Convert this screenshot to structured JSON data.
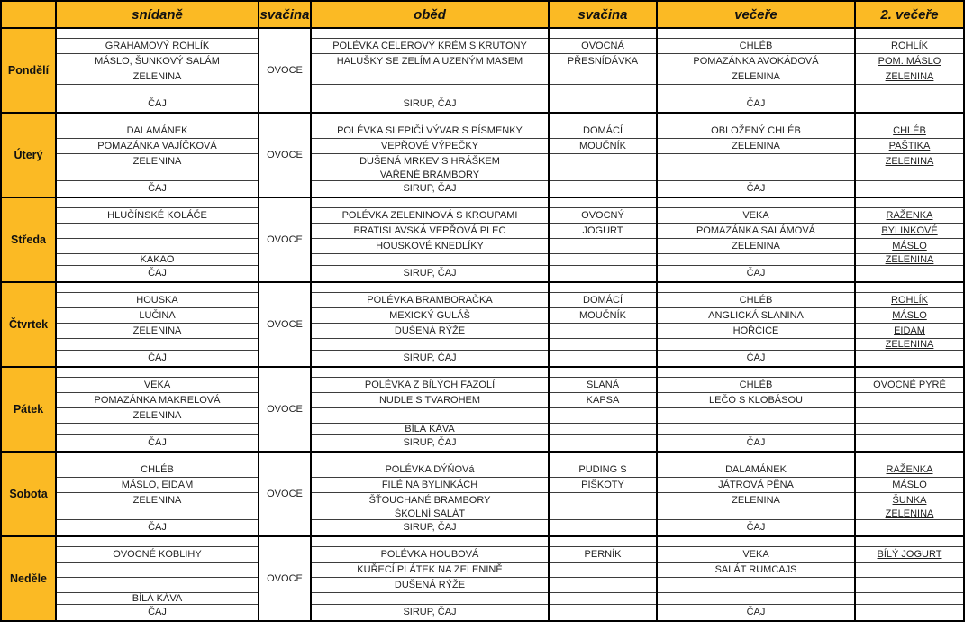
{
  "table": {
    "accent_color": "#FBBA24",
    "columns": [
      "",
      "snídaně",
      "svačina",
      "oběd",
      "svačina",
      "večeře",
      "2. večeře"
    ],
    "days": [
      {
        "name": "Pondělí",
        "breakfast": [
          "",
          "GRAHAMOVÝ ROHLÍK",
          "MÁSLO, ŠUNKOVÝ SALÁM",
          "ZELENINA",
          "",
          "ČAJ"
        ],
        "morning_snack": "OVOCE",
        "lunch": [
          "",
          "POLÉVKA CELEROVÝ KRÉM S KRUTONY",
          "HALUŠKY SE ZELÍM A UZENÝM MASEM",
          "",
          "",
          "SIRUP, ČAJ"
        ],
        "afternoon_snack": [
          "",
          "OVOCNÁ",
          "PŘESNÍDÁVKA",
          "",
          "",
          ""
        ],
        "dinner": [
          "",
          "CHLÉB",
          "POMAZÁNKA AVOKÁDOVÁ",
          "ZELENINA",
          "",
          "ČAJ"
        ],
        "second_dinner": [
          "",
          "ROHLÍK",
          "POM. MÁSLO",
          "ZELENINA",
          "",
          ""
        ]
      },
      {
        "name": "Úterý",
        "breakfast": [
          "",
          "DALAMÁNEK",
          "POMAZÁNKA VAJÍČKOVÁ",
          "ZELENINA",
          "",
          "ČAJ"
        ],
        "morning_snack": "OVOCE",
        "lunch": [
          "",
          "POLÉVKA SLEPIČÍ VÝVAR S PÍSMENKY",
          "VEPŘOVÉ VÝPEČKY",
          "DUŠENÁ MRKEV S HRÁŠKEM",
          "VAŘENÉ BRAMBORY",
          "SIRUP, ČAJ"
        ],
        "afternoon_snack": [
          "",
          "DOMÁCÍ",
          "MOUČNÍK",
          "",
          "",
          ""
        ],
        "dinner": [
          "",
          "OBLOŽENÝ CHLÉB",
          "ZELENINA",
          "",
          "",
          "ČAJ"
        ],
        "second_dinner": [
          "",
          "CHLÉB",
          "PAŠTIKA",
          "ZELENINA",
          "",
          ""
        ]
      },
      {
        "name": "Středa",
        "breakfast": [
          "",
          "HLUČÍNSKÉ KOLÁČE",
          "",
          "",
          "KAKAO",
          "ČAJ"
        ],
        "morning_snack": "OVOCE",
        "lunch": [
          "",
          "POLÉVKA ZELENINOVÁ S KROUPAMI",
          "BRATISLAVSKÁ VEPŘOVÁ PLEC",
          "HOUSKOVÉ KNEDLÍKY",
          "",
          "SIRUP, ČAJ"
        ],
        "afternoon_snack": [
          "",
          "OVOCNÝ",
          "JOGURT",
          "",
          "",
          ""
        ],
        "dinner": [
          "",
          "VEKA",
          "POMAZÁNKA SALÁMOVÁ",
          "ZELENINA",
          "",
          "ČAJ"
        ],
        "second_dinner": [
          "",
          "RAŽENKA",
          "BYLINKOVÉ",
          "MÁSLO",
          "ZELENINA",
          ""
        ]
      },
      {
        "name": "Čtvrtek",
        "breakfast": [
          "",
          "HOUSKA",
          "LUČINA",
          "ZELENINA",
          "",
          "ČAJ"
        ],
        "morning_snack": "OVOCE",
        "lunch": [
          "",
          "POLÉVKA BRAMBORAČKA",
          "MEXICKÝ GULÁŠ",
          "DUŠENÁ RÝŽE",
          "",
          "SIRUP, ČAJ"
        ],
        "afternoon_snack": [
          "",
          "DOMÁCÍ",
          "MOUČNÍK",
          "",
          "",
          ""
        ],
        "dinner": [
          "",
          "CHLÉB",
          "ANGLICKÁ SLANINA",
          "HOŘČICE",
          "",
          "ČAJ"
        ],
        "second_dinner": [
          "",
          "ROHLÍK",
          "MÁSLO",
          "EIDAM",
          "ZELENINA",
          ""
        ]
      },
      {
        "name": "Pátek",
        "breakfast": [
          "",
          "VEKA",
          "POMAZÁNKA MAKRELOVÁ",
          "ZELENINA",
          "",
          "ČAJ"
        ],
        "morning_snack": "OVOCE",
        "lunch": [
          "",
          "POLÉVKA Z BÍLÝCH FAZOLÍ",
          "NUDLE S TVAROHEM",
          "",
          "BÍLÁ KÁVA",
          "SIRUP, ČAJ"
        ],
        "afternoon_snack": [
          "",
          "SLANÁ",
          "KAPSA",
          "",
          "",
          ""
        ],
        "dinner": [
          "",
          "CHLÉB",
          "LEČO S KLOBÁSOU",
          "",
          "",
          "ČAJ"
        ],
        "second_dinner": [
          "",
          "OVOCNÉ PYRÉ",
          "",
          "",
          "",
          ""
        ]
      },
      {
        "name": "Sobota",
        "breakfast": [
          "",
          "CHLÉB",
          "MÁSLO, EIDAM",
          "ZELENINA",
          "",
          "ČAJ"
        ],
        "morning_snack": "OVOCE",
        "lunch": [
          "",
          "POLÉVKA DÝŇOVá",
          "FILÉ NA BYLINKÁCH",
          "ŠŤOUCHANÉ BRAMBORY",
          "ŠKOLNÍ SALÁT",
          "SIRUP, ČAJ"
        ],
        "afternoon_snack": [
          "",
          "PUDING S",
          "PIŠKOTY",
          "",
          "",
          ""
        ],
        "dinner": [
          "",
          "DALAMÁNEK",
          "JÁTROVÁ PĚNA",
          "ZELENINA",
          "",
          "ČAJ"
        ],
        "second_dinner": [
          "",
          "RAŽENKA",
          "MÁSLO",
          "ŠUNKA",
          "ZELENINA",
          ""
        ]
      },
      {
        "name": "Neděle",
        "breakfast": [
          "",
          "OVOCNÉ KOBLIHY",
          "",
          "",
          "BÍLÁ KÁVA",
          "ČAJ"
        ],
        "morning_snack": "OVOCE",
        "lunch": [
          "",
          "POLÉVKA HOUBOVÁ",
          "KUŘECÍ PLÁTEK NA ZELENINĚ",
          "DUŠENÁ RÝŽE",
          "",
          "SIRUP, ČAJ"
        ],
        "afternoon_snack": [
          "",
          "PERNÍK",
          "",
          "",
          "",
          ""
        ],
        "dinner": [
          "",
          "VEKA",
          "SALÁT RUMCAJS",
          "",
          "",
          "ČAJ"
        ],
        "second_dinner": [
          "",
          "BÍLÝ JOGURT",
          "",
          "",
          "",
          ""
        ]
      }
    ]
  }
}
